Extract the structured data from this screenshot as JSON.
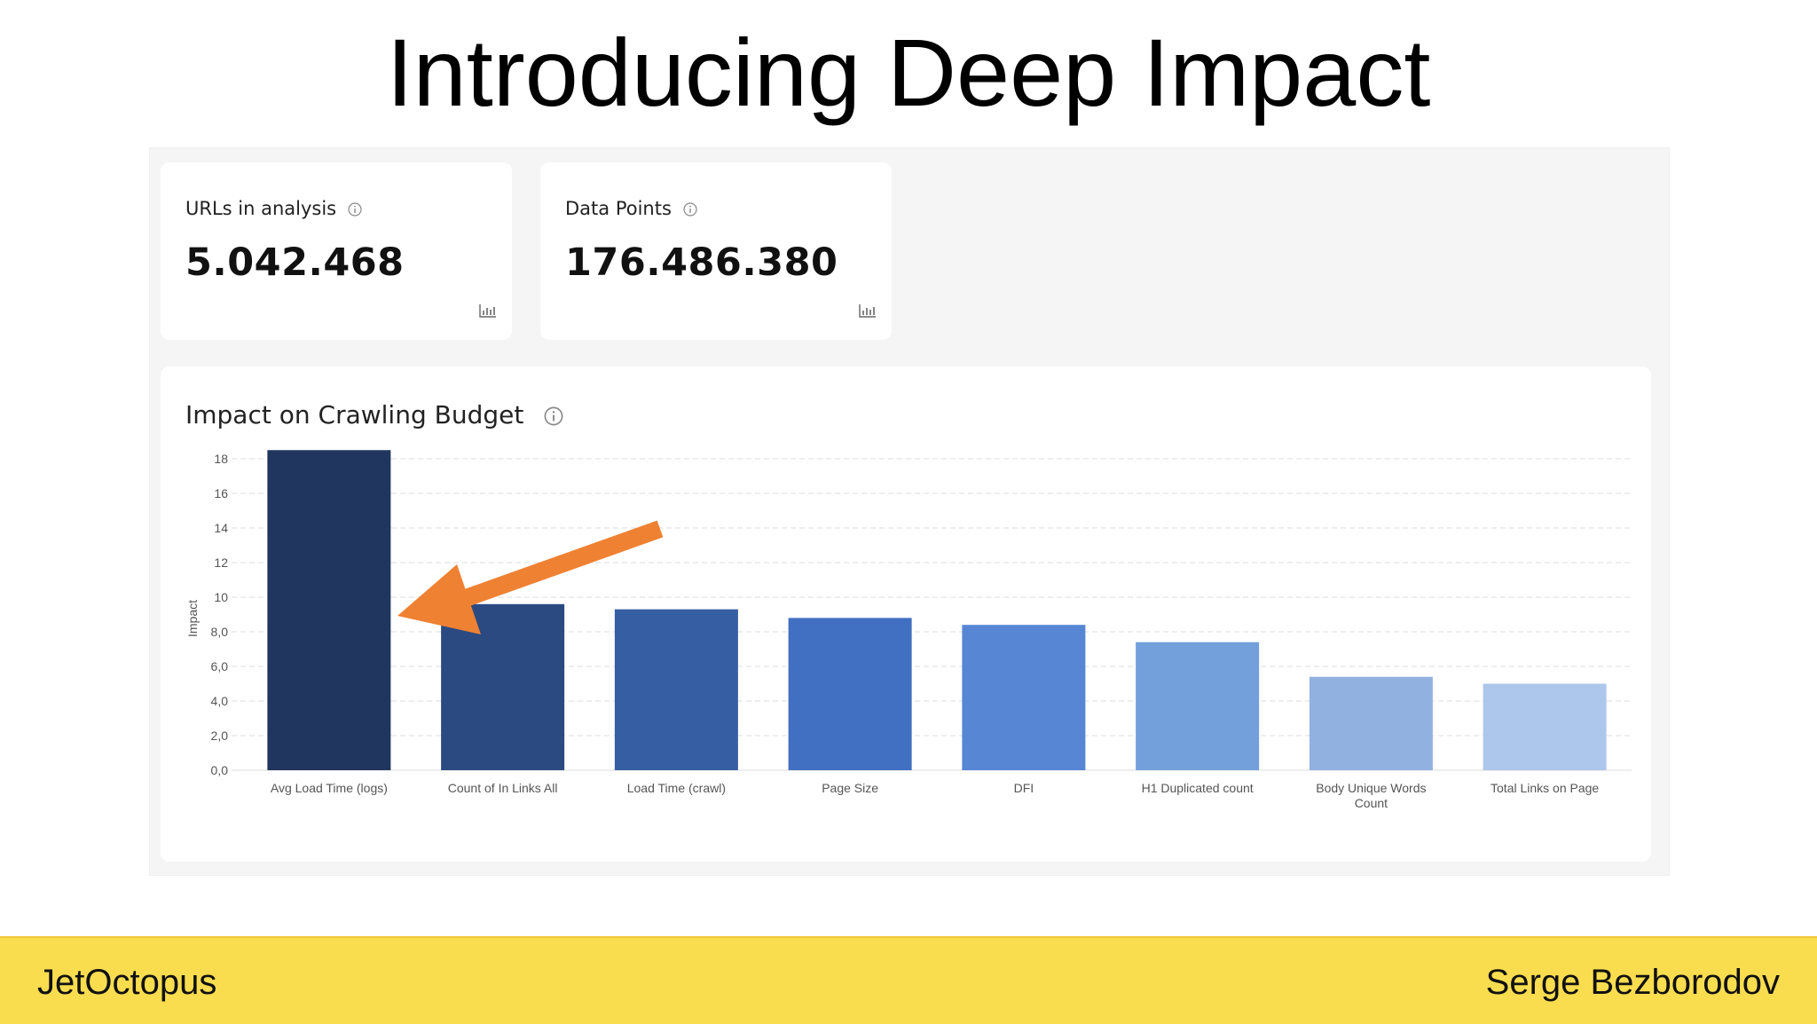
{
  "slide": {
    "title": "Introducing Deep Impact"
  },
  "metrics": [
    {
      "label": "URLs in analysis",
      "value": "5.042.468",
      "info_icon": "info-icon",
      "chart_icon": "bar-chart-icon"
    },
    {
      "label": "Data Points",
      "value": "176.486.380",
      "info_icon": "info-icon",
      "chart_icon": "bar-chart-icon"
    }
  ],
  "chart_card": {
    "title": "Impact on Crawling Budget",
    "info_icon": "info-icon"
  },
  "chart_data": {
    "type": "bar",
    "title": "Impact on Crawling Budget",
    "xlabel": "",
    "ylabel": "Impact",
    "ylim": [
      0,
      18
    ],
    "yticks": [
      "0,0",
      "2,0",
      "4,0",
      "6,0",
      "8,0",
      "10",
      "12",
      "14",
      "16",
      "18"
    ],
    "grid": true,
    "categories": [
      "Avg Load Time (logs)",
      "Count of In Links All",
      "Load Time (crawl)",
      "Page Size",
      "DFI",
      "H1 Duplicated count",
      "Body Unique Words Count",
      "Total Links on Page"
    ],
    "category_lines": [
      [
        "Avg Load Time (logs)"
      ],
      [
        "Count of In Links All"
      ],
      [
        "Load Time (crawl)"
      ],
      [
        "Page Size"
      ],
      [
        "DFI"
      ],
      [
        "H1 Duplicated count"
      ],
      [
        "Body Unique Words",
        "Count"
      ],
      [
        "Total Links on Page"
      ]
    ],
    "values": [
      18.5,
      9.6,
      9.3,
      8.8,
      8.4,
      7.4,
      5.4,
      5.0
    ],
    "colors": [
      "#21365f",
      "#2b4a82",
      "#365ea3",
      "#416fc2",
      "#5686d4",
      "#739fdb",
      "#91b1e0",
      "#adc6ec"
    ],
    "annotation": {
      "type": "arrow",
      "color": "#ef8132",
      "points_to": "Avg Load Time (logs)"
    }
  },
  "footer": {
    "left": "JetOctopus",
    "right": "Serge Bezborodov"
  }
}
